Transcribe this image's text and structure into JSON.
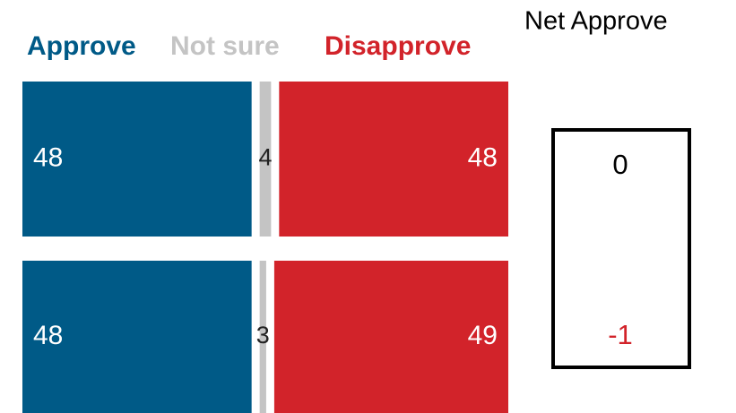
{
  "chart_data": {
    "type": "stacked-bar-horizontal",
    "categories": [
      null,
      null
    ],
    "series": [
      {
        "name": "Approve",
        "color": "#005a87",
        "values": [
          48,
          48
        ]
      },
      {
        "name": "Not sure",
        "color": "#c4c4c4",
        "values": [
          4,
          3
        ]
      },
      {
        "name": "Disapprove",
        "color": "#d2232a",
        "values": [
          48,
          49
        ]
      }
    ],
    "xlim": [
      0,
      100
    ],
    "net_title": "Net Approve",
    "net_values": [
      0,
      -1
    ]
  }
}
